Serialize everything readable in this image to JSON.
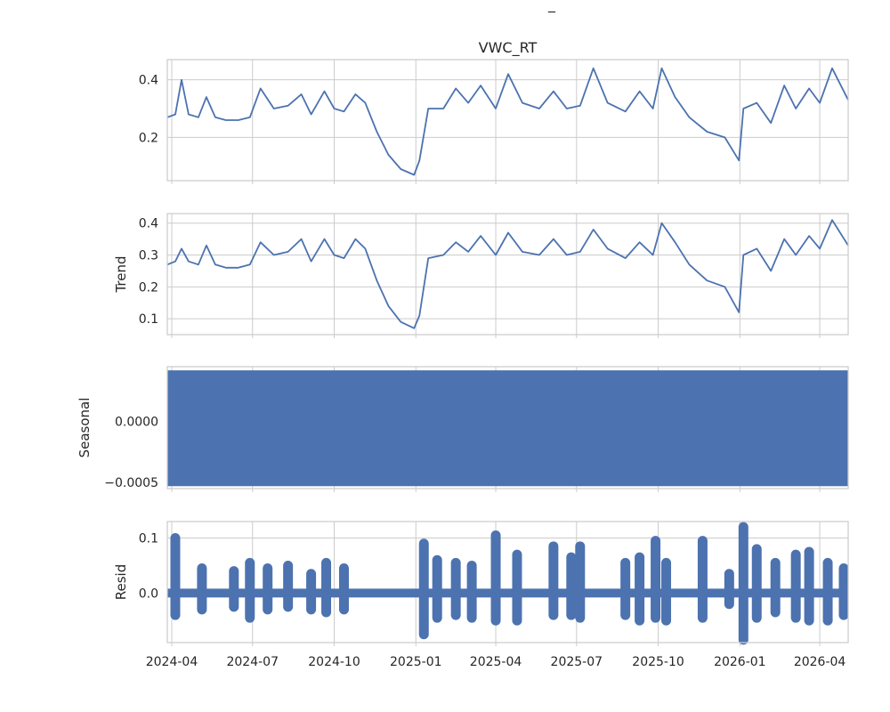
{
  "figure": {
    "suptitle": "_"
  },
  "chart_data": [
    {
      "type": "line",
      "title": "VWC_RT",
      "ylabel": "",
      "ylim": [
        0.05,
        0.47
      ],
      "yticks": [
        0.2,
        0.4
      ],
      "ytick_labels": [
        "0.2",
        "0.4"
      ],
      "xlim": [
        "2024-03-27",
        "2026-05-03"
      ],
      "color": "#4c72b0",
      "grid": true,
      "x": [
        "2024-03-27",
        "2024-04-05",
        "2024-04-12",
        "2024-04-20",
        "2024-05-01",
        "2024-05-10",
        "2024-05-20",
        "2024-06-01",
        "2024-06-15",
        "2024-06-28",
        "2024-07-10",
        "2024-07-25",
        "2024-08-10",
        "2024-08-25",
        "2024-09-05",
        "2024-09-20",
        "2024-10-01",
        "2024-10-12",
        "2024-10-25",
        "2024-11-05",
        "2024-11-18",
        "2024-12-01",
        "2024-12-15",
        "2024-12-30",
        "2025-01-05",
        "2025-01-15",
        "2025-02-01",
        "2025-02-15",
        "2025-03-01",
        "2025-03-15",
        "2025-04-01",
        "2025-04-15",
        "2025-05-01",
        "2025-05-20",
        "2025-06-05",
        "2025-06-20",
        "2025-07-05",
        "2025-07-20",
        "2025-08-05",
        "2025-08-25",
        "2025-09-10",
        "2025-09-25",
        "2025-10-05",
        "2025-10-20",
        "2025-11-05",
        "2025-11-25",
        "2025-12-15",
        "2025-12-31",
        "2026-01-05",
        "2026-01-20",
        "2026-02-05",
        "2026-02-20",
        "2026-03-05",
        "2026-03-20",
        "2026-04-01",
        "2026-04-15",
        "2026-05-03"
      ],
      "y": [
        0.27,
        0.28,
        0.4,
        0.28,
        0.27,
        0.34,
        0.27,
        0.26,
        0.26,
        0.27,
        0.37,
        0.3,
        0.31,
        0.35,
        0.28,
        0.36,
        0.3,
        0.29,
        0.35,
        0.32,
        0.22,
        0.14,
        0.09,
        0.07,
        0.12,
        0.3,
        0.3,
        0.37,
        0.32,
        0.38,
        0.3,
        0.42,
        0.32,
        0.3,
        0.36,
        0.3,
        0.31,
        0.44,
        0.32,
        0.29,
        0.36,
        0.3,
        0.44,
        0.34,
        0.27,
        0.22,
        0.2,
        0.12,
        0.3,
        0.32,
        0.25,
        0.38,
        0.3,
        0.37,
        0.32,
        0.44,
        0.33
      ]
    },
    {
      "type": "line",
      "title": "",
      "ylabel": "Trend",
      "ylim": [
        0.05,
        0.43
      ],
      "yticks": [
        0.1,
        0.2,
        0.3,
        0.4
      ],
      "ytick_labels": [
        "0.1",
        "0.2",
        "0.3",
        "0.4"
      ],
      "xlim": [
        "2024-03-27",
        "2026-05-03"
      ],
      "color": "#4c72b0",
      "grid": true,
      "x": [
        "2024-03-27",
        "2024-04-05",
        "2024-04-12",
        "2024-04-20",
        "2024-05-01",
        "2024-05-10",
        "2024-05-20",
        "2024-06-01",
        "2024-06-15",
        "2024-06-28",
        "2024-07-10",
        "2024-07-25",
        "2024-08-10",
        "2024-08-25",
        "2024-09-05",
        "2024-09-20",
        "2024-10-01",
        "2024-10-12",
        "2024-10-25",
        "2024-11-05",
        "2024-11-18",
        "2024-12-01",
        "2024-12-15",
        "2024-12-30",
        "2025-01-05",
        "2025-01-15",
        "2025-02-01",
        "2025-02-15",
        "2025-03-01",
        "2025-03-15",
        "2025-04-01",
        "2025-04-15",
        "2025-05-01",
        "2025-05-20",
        "2025-06-05",
        "2025-06-20",
        "2025-07-05",
        "2025-07-20",
        "2025-08-05",
        "2025-08-25",
        "2025-09-10",
        "2025-09-25",
        "2025-10-05",
        "2025-10-20",
        "2025-11-05",
        "2025-11-25",
        "2025-12-15",
        "2025-12-31",
        "2026-01-05",
        "2026-01-20",
        "2026-02-05",
        "2026-02-20",
        "2026-03-05",
        "2026-03-20",
        "2026-04-01",
        "2026-04-15",
        "2026-05-03"
      ],
      "y": [
        0.27,
        0.28,
        0.32,
        0.28,
        0.27,
        0.33,
        0.27,
        0.26,
        0.26,
        0.27,
        0.34,
        0.3,
        0.31,
        0.35,
        0.28,
        0.35,
        0.3,
        0.29,
        0.35,
        0.32,
        0.22,
        0.14,
        0.09,
        0.07,
        0.11,
        0.29,
        0.3,
        0.34,
        0.31,
        0.36,
        0.3,
        0.37,
        0.31,
        0.3,
        0.35,
        0.3,
        0.31,
        0.38,
        0.32,
        0.29,
        0.34,
        0.3,
        0.4,
        0.34,
        0.27,
        0.22,
        0.2,
        0.12,
        0.3,
        0.32,
        0.25,
        0.35,
        0.3,
        0.36,
        0.32,
        0.41,
        0.33
      ]
    },
    {
      "type": "line",
      "title": "",
      "ylabel": "Seasonal",
      "ylim": [
        -0.00055,
        0.00045
      ],
      "yticks": [
        0.0,
        -0.0005
      ],
      "ytick_labels": [
        "0.0000",
        "−0.0005"
      ],
      "xlim": [
        "2024-03-27",
        "2026-05-03"
      ],
      "color": "#4c72b0",
      "grid": true,
      "band": {
        "x_start": "2024-03-27",
        "x_end": "2026-05-03",
        "y_min": -0.00053,
        "y_max": 0.00042
      }
    },
    {
      "type": "scatter",
      "title": "",
      "ylabel": "Resid",
      "ylim": [
        -0.09,
        0.13
      ],
      "yticks": [
        0.0,
        0.1
      ],
      "ytick_labels": [
        "0.0",
        "0.1"
      ],
      "xlim": [
        "2024-03-27",
        "2026-05-03"
      ],
      "xticks": [
        "2024-04-01",
        "2024-07-01",
        "2024-10-01",
        "2025-01-01",
        "2025-04-01",
        "2025-07-01",
        "2025-10-01",
        "2026-01-01",
        "2026-04-01"
      ],
      "xtick_labels": [
        "2024-04",
        "2024-07",
        "2024-10",
        "2025-01",
        "2025-04",
        "2025-07",
        "2025-10",
        "2026-01",
        "2026-04"
      ],
      "color": "#4c72b0",
      "grid": true,
      "baseline_band": {
        "x_start": "2024-03-27",
        "x_end": "2026-05-03",
        "y_min": -0.008,
        "y_max": 0.008
      },
      "spikes": [
        {
          "x": "2024-04-05",
          "y_min": -0.04,
          "y_max": 0.1
        },
        {
          "x": "2024-05-05",
          "y_min": -0.03,
          "y_max": 0.045
        },
        {
          "x": "2024-06-10",
          "y_min": -0.025,
          "y_max": 0.04
        },
        {
          "x": "2024-06-28",
          "y_min": -0.045,
          "y_max": 0.055
        },
        {
          "x": "2024-07-18",
          "y_min": -0.03,
          "y_max": 0.045
        },
        {
          "x": "2024-08-10",
          "y_min": -0.025,
          "y_max": 0.05
        },
        {
          "x": "2024-09-05",
          "y_min": -0.03,
          "y_max": 0.035
        },
        {
          "x": "2024-09-22",
          "y_min": -0.035,
          "y_max": 0.055
        },
        {
          "x": "2024-10-12",
          "y_min": -0.03,
          "y_max": 0.045
        },
        {
          "x": "2025-01-10",
          "y_min": -0.075,
          "y_max": 0.09
        },
        {
          "x": "2025-01-25",
          "y_min": -0.045,
          "y_max": 0.06
        },
        {
          "x": "2025-02-15",
          "y_min": -0.04,
          "y_max": 0.055
        },
        {
          "x": "2025-03-05",
          "y_min": -0.045,
          "y_max": 0.05
        },
        {
          "x": "2025-04-01",
          "y_min": -0.05,
          "y_max": 0.105
        },
        {
          "x": "2025-04-25",
          "y_min": -0.05,
          "y_max": 0.07
        },
        {
          "x": "2025-06-05",
          "y_min": -0.04,
          "y_max": 0.085
        },
        {
          "x": "2025-06-25",
          "y_min": -0.04,
          "y_max": 0.065
        },
        {
          "x": "2025-07-05",
          "y_min": -0.045,
          "y_max": 0.085
        },
        {
          "x": "2025-08-25",
          "y_min": -0.04,
          "y_max": 0.055
        },
        {
          "x": "2025-09-10",
          "y_min": -0.05,
          "y_max": 0.065
        },
        {
          "x": "2025-09-28",
          "y_min": -0.045,
          "y_max": 0.095
        },
        {
          "x": "2025-10-10",
          "y_min": -0.05,
          "y_max": 0.055
        },
        {
          "x": "2025-11-20",
          "y_min": -0.045,
          "y_max": 0.095
        },
        {
          "x": "2025-12-20",
          "y_min": -0.02,
          "y_max": 0.035
        },
        {
          "x": "2026-01-05",
          "y_min": -0.085,
          "y_max": 0.12
        },
        {
          "x": "2026-01-20",
          "y_min": -0.045,
          "y_max": 0.08
        },
        {
          "x": "2026-02-10",
          "y_min": -0.035,
          "y_max": 0.055
        },
        {
          "x": "2026-03-05",
          "y_min": -0.045,
          "y_max": 0.07
        },
        {
          "x": "2026-03-20",
          "y_min": -0.05,
          "y_max": 0.075
        },
        {
          "x": "2026-04-10",
          "y_min": -0.05,
          "y_max": 0.055
        },
        {
          "x": "2026-04-28",
          "y_min": -0.04,
          "y_max": 0.045
        }
      ]
    }
  ]
}
